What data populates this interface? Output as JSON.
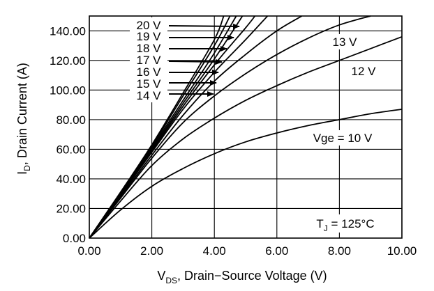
{
  "chart_data": {
    "type": "line",
    "xlim": [
      0,
      10
    ],
    "ylim": [
      0,
      150
    ],
    "grid": true,
    "x_ticks": [
      "0.00",
      "2.00",
      "4.00",
      "6.00",
      "8.00",
      "10.00"
    ],
    "y_ticks": [
      "0.00",
      "20.00",
      "40.00",
      "60.00",
      "80.00",
      "100.00",
      "120.00",
      "140.00"
    ],
    "xlabel": {
      "main": "V",
      "sub": "DS",
      "rest": ", Drain−Source Voltage (V)"
    },
    "ylabel": {
      "main": "I",
      "sub": "D",
      "rest": ", Drain Current (A)"
    },
    "annotation": {
      "main": "T",
      "sub": "J",
      "rest": " = 125°C"
    },
    "series": [
      {
        "name": "Vge = 10 V",
        "label": "Vge = 10 V",
        "x": [
          0,
          1,
          2,
          3,
          4,
          5,
          6,
          7,
          8,
          9,
          10
        ],
        "y": [
          0,
          19,
          35,
          47,
          57,
          65,
          71,
          76,
          80,
          84,
          87
        ]
      },
      {
        "name": "12 V",
        "label": "12 V",
        "x": [
          0,
          1,
          2,
          3,
          4,
          5,
          6,
          7,
          8,
          9,
          10
        ],
        "y": [
          0,
          25,
          49,
          67,
          81,
          93,
          103,
          112,
          120,
          128,
          136
        ]
      },
      {
        "name": "13 V",
        "label": "13 V",
        "x": [
          0,
          1,
          2,
          3,
          4,
          5,
          6,
          7,
          8,
          9
        ],
        "y": [
          0,
          27,
          54,
          78,
          96,
          111,
          124,
          135,
          144,
          150
        ]
      },
      {
        "name": "14 V",
        "label": "14 V",
        "x": [
          0,
          1,
          2,
          3,
          4,
          5,
          6,
          6.8
        ],
        "y": [
          0,
          28,
          56,
          83,
          106,
          124,
          140,
          150
        ]
      },
      {
        "name": "15 V",
        "label": "15 V",
        "x": [
          0,
          1,
          2,
          3,
          4,
          5,
          5.7
        ],
        "y": [
          0,
          29,
          58,
          87,
          112,
          134,
          150
        ]
      },
      {
        "name": "16 V",
        "label": "16 V",
        "x": [
          0,
          1,
          2,
          3,
          4,
          5,
          5.3
        ],
        "y": [
          0,
          29,
          59,
          89,
          117,
          142,
          150
        ]
      },
      {
        "name": "17 V",
        "label": "17 V",
        "x": [
          0,
          1,
          2,
          3,
          4,
          4.9
        ],
        "y": [
          0,
          30,
          60,
          91,
          121,
          150
        ]
      },
      {
        "name": "18 V",
        "label": "18 V",
        "x": [
          0,
          1,
          2,
          3,
          4,
          4.7
        ],
        "y": [
          0,
          30,
          61,
          93,
          125,
          150
        ]
      },
      {
        "name": "19 V",
        "label": "19 V",
        "x": [
          0,
          1,
          2,
          3,
          4,
          4.5
        ],
        "y": [
          0,
          31,
          62,
          96,
          130,
          150
        ]
      },
      {
        "name": "20 V",
        "label": "20 V",
        "x": [
          0,
          1,
          2,
          3,
          4,
          4.3
        ],
        "y": [
          0,
          31,
          63,
          98,
          134,
          150
        ]
      }
    ]
  }
}
